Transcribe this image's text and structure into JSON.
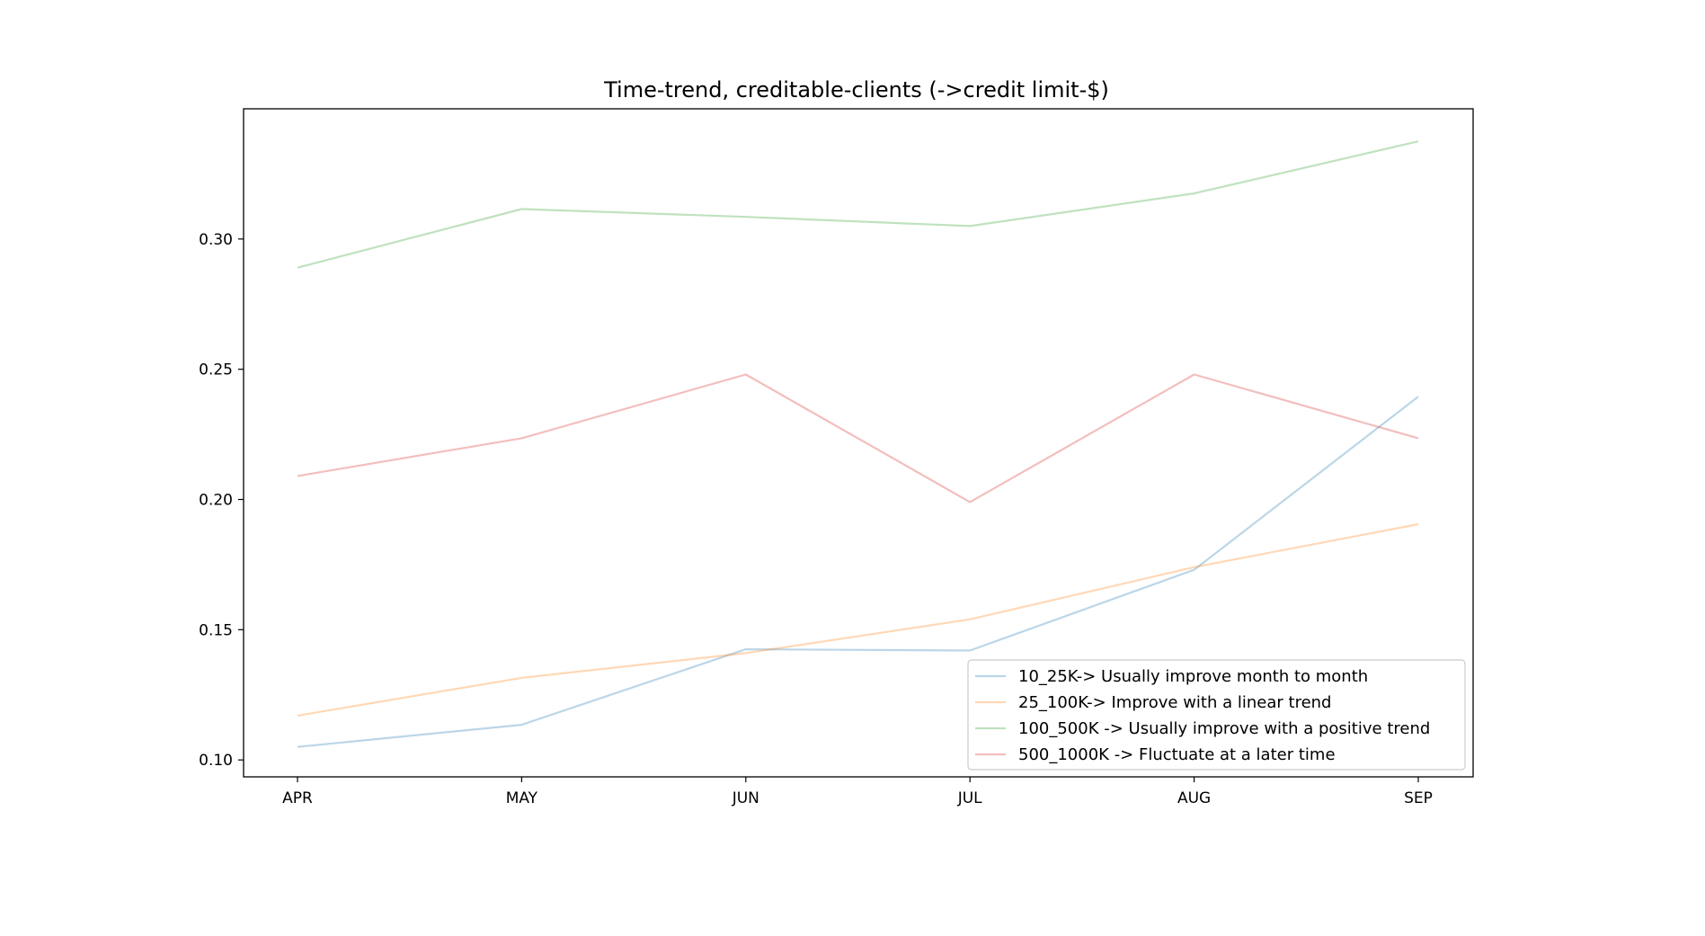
{
  "chart_data": {
    "type": "line",
    "title": "Time-trend, creditable-clients (->credit limit-$)",
    "xlabel": "",
    "ylabel": "",
    "categories": [
      "APR",
      "MAY",
      "JUN",
      "JUL",
      "AUG",
      "SEP"
    ],
    "yticks": [
      "0.10",
      "0.15",
      "0.20",
      "0.25",
      "0.30"
    ],
    "ylim": [
      0.0935,
      0.35
    ],
    "grid": false,
    "legend_position": "lower-right",
    "series": [
      {
        "name": "10_25K-> Usually improve month to month",
        "color": "#1f77b4",
        "values": [
          0.105,
          0.1135,
          0.1425,
          0.142,
          0.173,
          0.2395
        ]
      },
      {
        "name": "25_100K-> Improve with a linear trend",
        "color": "#ff7f0e",
        "values": [
          0.117,
          0.1315,
          0.141,
          0.154,
          0.174,
          0.1905
        ]
      },
      {
        "name": "100_500K -> Usually improve with a positive trend",
        "color": "#2ca02c",
        "values": [
          0.289,
          0.3115,
          0.3085,
          0.305,
          0.3175,
          0.3375
        ]
      },
      {
        "name": "500_1000K -> Fluctuate at a later time",
        "color": "#d62728",
        "values": [
          0.209,
          0.2235,
          0.248,
          0.199,
          0.248,
          0.2235
        ]
      }
    ]
  }
}
